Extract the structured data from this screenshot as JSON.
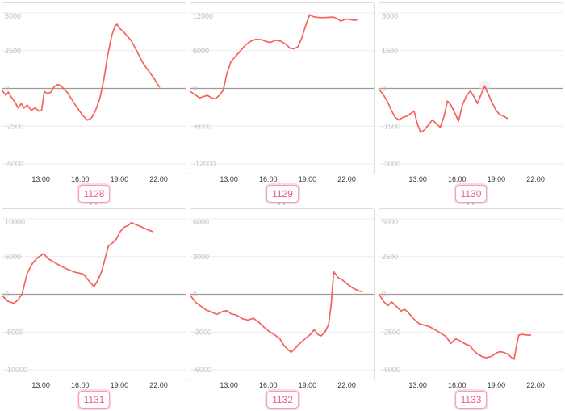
{
  "page": {
    "background": "#ffffff",
    "description_colors": {
      "line": "#f4635c",
      "grid_line": "#ececec",
      "zero_line": "#9b9b9b",
      "panel_border": "#dddddd",
      "y_tick_text": "#bdbdbd",
      "x_tick_text": "#3a3a3a",
      "badge_text": "#e8607f",
      "badge_border": "#f29cb2",
      "badge_halo": "#fbdae3",
      "hover_halo": "#e3e3e3"
    }
  },
  "chart_data": [
    {
      "type": "line",
      "machine_label": "1128",
      "x_domain": [
        10,
        24
      ],
      "x_ticks": [
        {
          "hour": 13,
          "label": "13:00"
        },
        {
          "hour": 16,
          "label": "16:00"
        },
        {
          "hour": 19,
          "label": "19:00"
        },
        {
          "hour": 22,
          "label": "22:00"
        }
      ],
      "ylim": [
        -5000,
        5000
      ],
      "y_ticks": [
        5000,
        2500,
        0,
        -2500,
        -5000
      ],
      "grid": "horizontal",
      "legend": false,
      "points": [
        [
          10.0,
          -150
        ],
        [
          10.25,
          -450
        ],
        [
          10.45,
          -250
        ],
        [
          10.7,
          -600
        ],
        [
          10.95,
          -900
        ],
        [
          11.2,
          -1300
        ],
        [
          11.45,
          -1000
        ],
        [
          11.65,
          -1300
        ],
        [
          11.9,
          -1100
        ],
        [
          12.2,
          -1450
        ],
        [
          12.5,
          -1300
        ],
        [
          12.8,
          -1500
        ],
        [
          13.0,
          -1450
        ],
        [
          13.2,
          -200
        ],
        [
          13.45,
          -350
        ],
        [
          13.7,
          -250
        ],
        [
          13.95,
          100
        ],
        [
          14.2,
          250
        ],
        [
          14.45,
          200
        ],
        [
          14.7,
          -50
        ],
        [
          14.95,
          -250
        ],
        [
          15.2,
          -600
        ],
        [
          15.5,
          -1000
        ],
        [
          15.85,
          -1450
        ],
        [
          16.15,
          -1800
        ],
        [
          16.5,
          -2100
        ],
        [
          16.8,
          -1950
        ],
        [
          17.1,
          -1500
        ],
        [
          17.45,
          -650
        ],
        [
          17.75,
          600
        ],
        [
          18.05,
          2200
        ],
        [
          18.35,
          3500
        ],
        [
          18.6,
          4100
        ],
        [
          18.75,
          4250
        ],
        [
          19.0,
          3950
        ],
        [
          19.3,
          3700
        ],
        [
          19.6,
          3400
        ],
        [
          19.85,
          3150
        ],
        [
          20.1,
          2750
        ],
        [
          20.4,
          2250
        ],
        [
          20.7,
          1750
        ],
        [
          21.0,
          1350
        ],
        [
          21.3,
          1000
        ],
        [
          21.6,
          650
        ],
        [
          21.8,
          350
        ],
        [
          22.0,
          100
        ]
      ]
    },
    {
      "type": "line",
      "machine_label": "1129",
      "x_domain": [
        10,
        24
      ],
      "x_ticks": [
        {
          "hour": 13,
          "label": "13:00"
        },
        {
          "hour": 16,
          "label": "16:00"
        },
        {
          "hour": 19,
          "label": "19:00"
        },
        {
          "hour": 22,
          "label": "22:00"
        }
      ],
      "ylim": [
        -12000,
        12000
      ],
      "y_ticks": [
        12000,
        6000,
        0,
        -6000,
        -12000
      ],
      "grid": "horizontal",
      "legend": false,
      "points": [
        [
          10.0,
          -500
        ],
        [
          10.35,
          -1000
        ],
        [
          10.7,
          -1500
        ],
        [
          11.0,
          -1300
        ],
        [
          11.3,
          -1100
        ],
        [
          11.6,
          -1500
        ],
        [
          11.9,
          -1650
        ],
        [
          12.2,
          -1100
        ],
        [
          12.5,
          -300
        ],
        [
          12.8,
          2500
        ],
        [
          13.1,
          4300
        ],
        [
          13.4,
          5000
        ],
        [
          13.8,
          5900
        ],
        [
          14.2,
          6900
        ],
        [
          14.6,
          7500
        ],
        [
          15.0,
          7800
        ],
        [
          15.4,
          7750
        ],
        [
          15.8,
          7450
        ],
        [
          16.1,
          7300
        ],
        [
          16.5,
          7650
        ],
        [
          16.9,
          7500
        ],
        [
          17.3,
          7000
        ],
        [
          17.6,
          6400
        ],
        [
          17.9,
          6300
        ],
        [
          18.2,
          6600
        ],
        [
          18.5,
          8000
        ],
        [
          18.8,
          10000
        ],
        [
          19.1,
          11700
        ],
        [
          19.4,
          11400
        ],
        [
          19.7,
          11300
        ],
        [
          20.1,
          11250
        ],
        [
          20.5,
          11300
        ],
        [
          20.9,
          11350
        ],
        [
          21.2,
          11100
        ],
        [
          21.5,
          10700
        ],
        [
          21.9,
          11050
        ],
        [
          22.2,
          10950
        ],
        [
          22.5,
          10850
        ],
        [
          22.7,
          10900
        ]
      ]
    },
    {
      "type": "line",
      "machine_label": "1130",
      "x_domain": [
        10,
        24
      ],
      "x_ticks": [
        {
          "hour": 13,
          "label": "13:00"
        },
        {
          "hour": 16,
          "label": "16:00"
        },
        {
          "hour": 19,
          "label": "19:00"
        },
        {
          "hour": 22,
          "label": "22:00"
        }
      ],
      "ylim": [
        -3000,
        3000
      ],
      "y_ticks": [
        3000,
        1500,
        0,
        -1500,
        -3000
      ],
      "grid": "horizontal",
      "legend": false,
      "hover_point": [
        18.05,
        100
      ],
      "points": [
        [
          10.0,
          -50
        ],
        [
          10.3,
          -250
        ],
        [
          10.6,
          -500
        ],
        [
          10.9,
          -850
        ],
        [
          11.2,
          -1150
        ],
        [
          11.5,
          -1250
        ],
        [
          11.8,
          -1150
        ],
        [
          12.1,
          -1100
        ],
        [
          12.4,
          -1000
        ],
        [
          12.65,
          -900
        ],
        [
          12.9,
          -1400
        ],
        [
          13.15,
          -1750
        ],
        [
          13.45,
          -1650
        ],
        [
          13.75,
          -1450
        ],
        [
          14.05,
          -1250
        ],
        [
          14.35,
          -1400
        ],
        [
          14.65,
          -1550
        ],
        [
          14.95,
          -1100
        ],
        [
          15.2,
          -500
        ],
        [
          15.45,
          -650
        ],
        [
          15.75,
          -950
        ],
        [
          16.05,
          -1300
        ],
        [
          16.35,
          -650
        ],
        [
          16.65,
          -300
        ],
        [
          16.95,
          -100
        ],
        [
          17.25,
          -350
        ],
        [
          17.5,
          -600
        ],
        [
          17.8,
          -200
        ],
        [
          18.05,
          100
        ],
        [
          18.3,
          -200
        ],
        [
          18.6,
          -550
        ],
        [
          18.9,
          -850
        ],
        [
          19.2,
          -1050
        ],
        [
          19.5,
          -1100
        ],
        [
          19.8,
          -1200
        ]
      ]
    },
    {
      "type": "line",
      "machine_label": "1131",
      "x_domain": [
        10,
        24
      ],
      "x_ticks": [
        {
          "hour": 13,
          "label": "13:00"
        },
        {
          "hour": 16,
          "label": "16:00"
        },
        {
          "hour": 19,
          "label": "19:00"
        },
        {
          "hour": 22,
          "label": "22:00"
        }
      ],
      "ylim": [
        -10000,
        10000
      ],
      "y_ticks": [
        10000,
        5000,
        0,
        -5000,
        -10000
      ],
      "grid": "horizontal",
      "legend": false,
      "points": [
        [
          10.0,
          -200
        ],
        [
          10.4,
          -900
        ],
        [
          10.9,
          -1200
        ],
        [
          11.2,
          -700
        ],
        [
          11.5,
          0
        ],
        [
          11.9,
          2800
        ],
        [
          12.3,
          4100
        ],
        [
          12.7,
          4900
        ],
        [
          13.0,
          5200
        ],
        [
          13.15,
          5400
        ],
        [
          13.5,
          4700
        ],
        [
          14.0,
          4200
        ],
        [
          14.5,
          3700
        ],
        [
          15.0,
          3300
        ],
        [
          15.5,
          2950
        ],
        [
          15.9,
          2800
        ],
        [
          16.2,
          2650
        ],
        [
          16.6,
          1800
        ],
        [
          17.0,
          1000
        ],
        [
          17.3,
          1900
        ],
        [
          17.6,
          3100
        ],
        [
          17.9,
          5100
        ],
        [
          18.1,
          6400
        ],
        [
          18.4,
          6800
        ],
        [
          18.7,
          7300
        ],
        [
          19.0,
          8300
        ],
        [
          19.3,
          8900
        ],
        [
          19.6,
          9100
        ],
        [
          19.85,
          9500
        ],
        [
          20.1,
          9300
        ],
        [
          20.6,
          8950
        ],
        [
          21.1,
          8550
        ],
        [
          21.5,
          8300
        ]
      ]
    },
    {
      "type": "line",
      "machine_label": "1132",
      "x_domain": [
        10,
        24
      ],
      "x_ticks": [
        {
          "hour": 13,
          "label": "13:00"
        },
        {
          "hour": 16,
          "label": "16:00"
        },
        {
          "hour": 19,
          "label": "19:00"
        },
        {
          "hour": 22,
          "label": "22:00"
        }
      ],
      "ylim": [
        -6000,
        6000
      ],
      "y_ticks": [
        6000,
        3000,
        0,
        -3000,
        -6000
      ],
      "grid": "horizontal",
      "legend": false,
      "points": [
        [
          10.0,
          -100
        ],
        [
          10.4,
          -650
        ],
        [
          10.8,
          -950
        ],
        [
          11.2,
          -1250
        ],
        [
          11.6,
          -1400
        ],
        [
          12.0,
          -1600
        ],
        [
          12.5,
          -1350
        ],
        [
          12.8,
          -1300
        ],
        [
          13.1,
          -1550
        ],
        [
          13.5,
          -1650
        ],
        [
          14.0,
          -1950
        ],
        [
          14.4,
          -2050
        ],
        [
          14.8,
          -1900
        ],
        [
          15.2,
          -2200
        ],
        [
          15.6,
          -2600
        ],
        [
          16.0,
          -2950
        ],
        [
          16.4,
          -3200
        ],
        [
          16.8,
          -3500
        ],
        [
          17.1,
          -4000
        ],
        [
          17.4,
          -4350
        ],
        [
          17.7,
          -4600
        ],
        [
          18.0,
          -4300
        ],
        [
          18.4,
          -3850
        ],
        [
          18.8,
          -3500
        ],
        [
          19.2,
          -3150
        ],
        [
          19.45,
          -2800
        ],
        [
          19.75,
          -3200
        ],
        [
          20.0,
          -3300
        ],
        [
          20.3,
          -2950
        ],
        [
          20.55,
          -2400
        ],
        [
          20.75,
          -800
        ],
        [
          20.95,
          1800
        ],
        [
          21.3,
          1300
        ],
        [
          21.6,
          1150
        ],
        [
          22.0,
          800
        ],
        [
          22.4,
          500
        ],
        [
          22.8,
          300
        ],
        [
          23.1,
          200
        ]
      ]
    },
    {
      "type": "line",
      "machine_label": "1133",
      "x_domain": [
        10,
        24
      ],
      "x_ticks": [
        {
          "hour": 13,
          "label": "13:00"
        },
        {
          "hour": 16,
          "label": "16:00"
        },
        {
          "hour": 19,
          "label": "19:00"
        },
        {
          "hour": 22,
          "label": "22:00"
        }
      ],
      "ylim": [
        -5000,
        5000
      ],
      "y_ticks": [
        5000,
        2500,
        0,
        -2500,
        -5000
      ],
      "grid": "horizontal",
      "legend": false,
      "points": [
        [
          10.0,
          -50
        ],
        [
          10.35,
          -500
        ],
        [
          10.65,
          -750
        ],
        [
          10.95,
          -500
        ],
        [
          11.3,
          -800
        ],
        [
          11.65,
          -1100
        ],
        [
          11.95,
          -1000
        ],
        [
          12.25,
          -1250
        ],
        [
          12.65,
          -1650
        ],
        [
          13.05,
          -1950
        ],
        [
          13.45,
          -2050
        ],
        [
          13.85,
          -2150
        ],
        [
          14.25,
          -2350
        ],
        [
          14.65,
          -2550
        ],
        [
          15.1,
          -2800
        ],
        [
          15.45,
          -3250
        ],
        [
          15.85,
          -2950
        ],
        [
          16.2,
          -3100
        ],
        [
          16.6,
          -3300
        ],
        [
          16.9,
          -3400
        ],
        [
          17.2,
          -3700
        ],
        [
          17.5,
          -3950
        ],
        [
          17.9,
          -4150
        ],
        [
          18.2,
          -4200
        ],
        [
          18.6,
          -4100
        ],
        [
          18.9,
          -3900
        ],
        [
          19.2,
          -3800
        ],
        [
          19.5,
          -3850
        ],
        [
          19.8,
          -3950
        ],
        [
          20.1,
          -4200
        ],
        [
          20.3,
          -4300
        ],
        [
          20.5,
          -3300
        ],
        [
          20.65,
          -2700
        ],
        [
          20.9,
          -2650
        ],
        [
          21.3,
          -2700
        ],
        [
          21.55,
          -2700
        ]
      ]
    }
  ]
}
